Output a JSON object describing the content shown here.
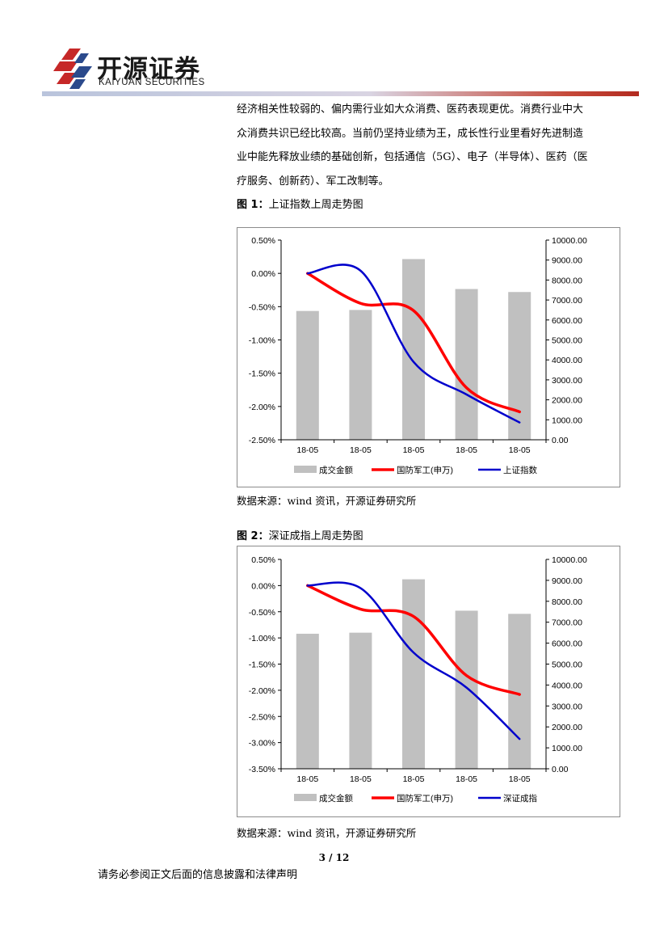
{
  "header": {
    "logo_cn": "开源证券",
    "logo_en": "KAIYUAN SECURITIES"
  },
  "body": {
    "lines": [
      "经济相关性较弱的、偏内需行业如大众消费、医药表现更优。消费行业中大",
      "众消费共识已经比较高。当前仍坚持业绩为王，成长性行业里看好先进制造",
      "业中能先释放业绩的基础创新，包括通信（5G）、电子（半导体）、医药（医",
      "疗服务、创新药）、军工改制等。"
    ]
  },
  "figure1": {
    "label": "图 1：",
    "title": "上证指数上周走势图",
    "source": "数据来源：wind 资讯，开源证券研究所"
  },
  "figure2": {
    "label": "图 2：",
    "title": "深证成指上周走势图",
    "source": "数据来源：wind 资讯，开源证券研究所"
  },
  "chart_data": [
    {
      "type": "bar",
      "categories": [
        "18-05",
        "18-05",
        "18-05",
        "18-05",
        "18-05"
      ],
      "ylim": [
        -2.5,
        0.5
      ],
      "y_ticks": [
        "0.50%",
        "0.00%",
        "-0.50%",
        "-1.00%",
        "-1.50%",
        "-2.00%",
        "-2.50%"
      ],
      "y2lim": [
        0,
        10000
      ],
      "y2_ticks": [
        "10000.00",
        "9000.00",
        "8000.00",
        "7000.00",
        "6000.00",
        "5000.00",
        "4000.00",
        "3000.00",
        "2000.00",
        "1000.00",
        "0.00"
      ],
      "series": [
        {
          "name": "成交金额",
          "kind": "bar",
          "axis": "right",
          "color": "#c0c0c0",
          "values": [
            6450,
            6500,
            9050,
            7550,
            7400
          ]
        },
        {
          "name": "国防军工(申万)",
          "kind": "line",
          "axis": "left",
          "color": "#ff0000",
          "values": [
            0.0,
            -0.45,
            -0.56,
            -1.72,
            -2.08
          ]
        },
        {
          "name": "上证指数",
          "kind": "line",
          "axis": "left",
          "color": "#0000cc",
          "values": [
            0.0,
            0.04,
            -1.33,
            -1.82,
            -2.24
          ]
        }
      ],
      "legend_position": "bottom",
      "grid": false
    },
    {
      "type": "bar",
      "categories": [
        "18-05",
        "18-05",
        "18-05",
        "18-05",
        "18-05"
      ],
      "ylim": [
        -3.5,
        0.5
      ],
      "y_ticks": [
        "0.50%",
        "0.00%",
        "-0.50%",
        "-1.00%",
        "-1.50%",
        "-2.00%",
        "-2.50%",
        "-3.00%",
        "-3.50%"
      ],
      "y2lim": [
        0,
        10000
      ],
      "y2_ticks": [
        "10000.00",
        "9000.00",
        "8000.00",
        "7000.00",
        "6000.00",
        "5000.00",
        "4000.00",
        "3000.00",
        "2000.00",
        "1000.00",
        "0.00"
      ],
      "series": [
        {
          "name": "成交金额",
          "kind": "bar",
          "axis": "right",
          "color": "#c0c0c0",
          "values": [
            6450,
            6500,
            9050,
            7550,
            7400
          ]
        },
        {
          "name": "国防军工(申万)",
          "kind": "line",
          "axis": "left",
          "color": "#ff0000",
          "values": [
            0.0,
            -0.45,
            -0.59,
            -1.72,
            -2.08
          ]
        },
        {
          "name": "深证成指",
          "kind": "line",
          "axis": "left",
          "color": "#0000cc",
          "values": [
            0.0,
            -0.05,
            -1.28,
            -1.95,
            -2.93
          ]
        }
      ],
      "legend_position": "bottom",
      "grid": false
    }
  ],
  "footer": {
    "page": "3 / 12",
    "disclaimer": "请务必参阅正文后面的信息披露和法律声明"
  }
}
